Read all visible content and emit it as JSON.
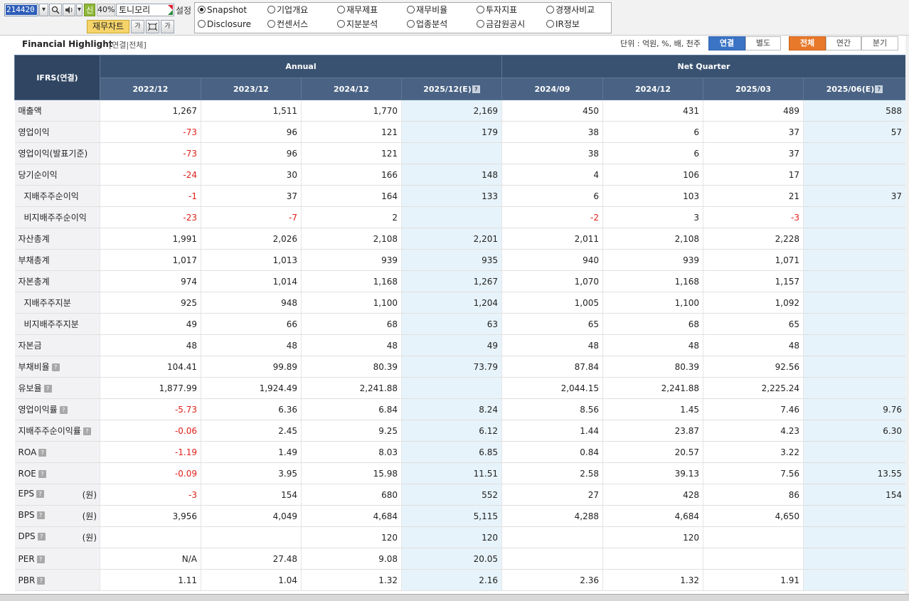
{
  "toolbar": {
    "code": "214420",
    "new_badge": "신",
    "zoom": "40%",
    "stock_name": "토니모리",
    "setting_label": "설정",
    "chart_button": "재무차트",
    "tool_font": "가",
    "tool_font2": "가"
  },
  "radios": [
    {
      "label": "Snapshot",
      "checked": true
    },
    {
      "label": "기업개요",
      "checked": false
    },
    {
      "label": "재무제표",
      "checked": false
    },
    {
      "label": "재무비율",
      "checked": false
    },
    {
      "label": "투자지표",
      "checked": false
    },
    {
      "label": "경쟁사비교",
      "checked": false
    },
    {
      "label": "Disclosure",
      "checked": false
    },
    {
      "label": "컨센서스",
      "checked": false
    },
    {
      "label": "지분분석",
      "checked": false
    },
    {
      "label": "업종분석",
      "checked": false
    },
    {
      "label": "금감원공시",
      "checked": false
    },
    {
      "label": "IR정보",
      "checked": false
    }
  ],
  "section": {
    "title": "Financial Highlight",
    "subtitle": "[연결|전체]",
    "unit_label": "단위 : 억원, %, 배, 천주",
    "toggle_consolidated": "연결",
    "toggle_separate": "별도",
    "toggle_all": "전체",
    "toggle_annual": "연간",
    "toggle_quarter": "분기"
  },
  "table": {
    "corner_label": "IFRS(연결)",
    "group_annual": "Annual",
    "group_quarter": "Net Quarter",
    "columns": [
      "2022/12",
      "2023/12",
      "2024/12",
      "2025/12(E)",
      "2024/09",
      "2024/12",
      "2025/03",
      "2025/06(E)"
    ],
    "rows": [
      {
        "label": "매출액",
        "cells": [
          "1,267",
          "1,511",
          "1,770",
          "2,169",
          "450",
          "431",
          "489",
          "588"
        ]
      },
      {
        "label": "영업이익",
        "cells": [
          "-73",
          "96",
          "121",
          "179",
          "38",
          "6",
          "37",
          "57"
        ]
      },
      {
        "label": "영업이익(발표기준)",
        "cells": [
          "-73",
          "96",
          "121",
          "",
          "38",
          "6",
          "37",
          ""
        ]
      },
      {
        "label": "당기순이익",
        "cells": [
          "-24",
          "30",
          "166",
          "148",
          "4",
          "106",
          "17",
          ""
        ]
      },
      {
        "label": "지배주주순이익",
        "indent": true,
        "cells": [
          "-1",
          "37",
          "164",
          "133",
          "6",
          "103",
          "21",
          "37"
        ]
      },
      {
        "label": "비지배주주순이익",
        "indent": true,
        "cells": [
          "-23",
          "-7",
          "2",
          "",
          "-2",
          "3",
          "-3",
          ""
        ]
      },
      {
        "label": "자산총계",
        "cells": [
          "1,991",
          "2,026",
          "2,108",
          "2,201",
          "2,011",
          "2,108",
          "2,228",
          ""
        ]
      },
      {
        "label": "부채총계",
        "cells": [
          "1,017",
          "1,013",
          "939",
          "935",
          "940",
          "939",
          "1,071",
          ""
        ]
      },
      {
        "label": "자본총계",
        "cells": [
          "974",
          "1,014",
          "1,168",
          "1,267",
          "1,070",
          "1,168",
          "1,157",
          ""
        ]
      },
      {
        "label": "지배주주지분",
        "indent": true,
        "cells": [
          "925",
          "948",
          "1,100",
          "1,204",
          "1,005",
          "1,100",
          "1,092",
          ""
        ]
      },
      {
        "label": "비지배주주지분",
        "indent": true,
        "cells": [
          "49",
          "66",
          "68",
          "63",
          "65",
          "68",
          "65",
          ""
        ]
      },
      {
        "label": "자본금",
        "cells": [
          "48",
          "48",
          "48",
          "49",
          "48",
          "48",
          "48",
          ""
        ]
      },
      {
        "label": "부채비율",
        "help": true,
        "cells": [
          "104.41",
          "99.89",
          "80.39",
          "73.79",
          "87.84",
          "80.39",
          "92.56",
          ""
        ]
      },
      {
        "label": "유보율",
        "help": true,
        "cells": [
          "1,877.99",
          "1,924.49",
          "2,241.88",
          "",
          "2,044.15",
          "2,241.88",
          "2,225.24",
          ""
        ]
      },
      {
        "label": "영업이익률",
        "help": true,
        "cells": [
          "-5.73",
          "6.36",
          "6.84",
          "8.24",
          "8.56",
          "1.45",
          "7.46",
          "9.76"
        ]
      },
      {
        "label": "지배주주순이익률",
        "help": true,
        "cells": [
          "-0.06",
          "2.45",
          "9.25",
          "6.12",
          "1.44",
          "23.87",
          "4.23",
          "6.30"
        ]
      },
      {
        "label": "ROA",
        "help": true,
        "cells": [
          "-1.19",
          "1.49",
          "8.03",
          "6.85",
          "0.84",
          "20.57",
          "3.22",
          ""
        ]
      },
      {
        "label": "ROE",
        "help": true,
        "cells": [
          "-0.09",
          "3.95",
          "15.98",
          "11.51",
          "2.58",
          "39.13",
          "7.56",
          "13.55"
        ]
      },
      {
        "label": "EPS",
        "help": true,
        "unit": "(원)",
        "cells": [
          "-3",
          "154",
          "680",
          "552",
          "27",
          "428",
          "86",
          "154"
        ]
      },
      {
        "label": "BPS",
        "help": true,
        "unit": "(원)",
        "cells": [
          "3,956",
          "4,049",
          "4,684",
          "5,115",
          "4,288",
          "4,684",
          "4,650",
          ""
        ]
      },
      {
        "label": "DPS",
        "help": true,
        "unit": "(원)",
        "cells": [
          "",
          "",
          "120",
          "120",
          "",
          "120",
          "",
          ""
        ]
      },
      {
        "label": "PER",
        "help": true,
        "cells": [
          "N/A",
          "27.48",
          "9.08",
          "20.05",
          "",
          "",
          "",
          ""
        ]
      },
      {
        "label": "PBR",
        "help": true,
        "cells": [
          "1.11",
          "1.04",
          "1.32",
          "2.16",
          "2.36",
          "1.32",
          "1.91",
          ""
        ]
      }
    ]
  },
  "colors": {
    "header_bg": "#3a5271",
    "estimate_bg": "#e6f3fa",
    "negative": "#e0201a",
    "toggle_blue": "#3b74c5",
    "toggle_orange": "#e8782a"
  }
}
